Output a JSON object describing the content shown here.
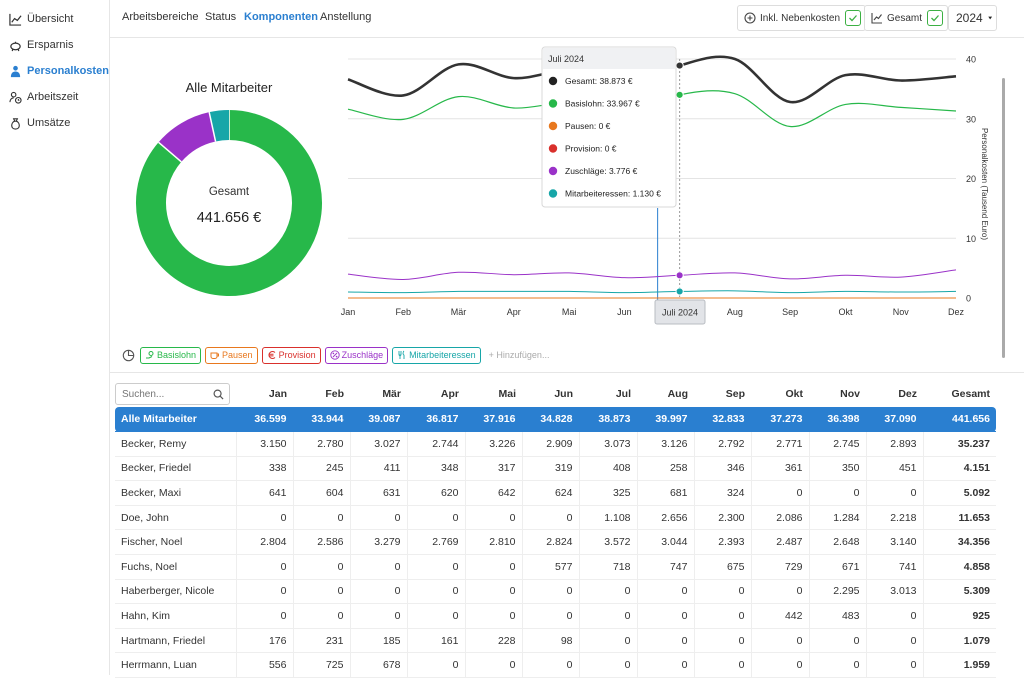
{
  "sidebar": {
    "items": [
      {
        "label": "Übersicht",
        "icon": "chart-line-icon",
        "active": false
      },
      {
        "label": "Ersparnis",
        "icon": "piggy-bank-icon",
        "active": false
      },
      {
        "label": "Personalkosten",
        "icon": "person-icon",
        "active": true
      },
      {
        "label": "Arbeitszeit",
        "icon": "clock-user-icon",
        "active": false
      },
      {
        "label": "Umsätze",
        "icon": "money-bag-icon",
        "active": false
      }
    ]
  },
  "header": {
    "tabs": [
      {
        "label": "Arbeitsbereiche",
        "active": false
      },
      {
        "label": "Status",
        "active": false
      },
      {
        "label": "Komponenten",
        "active": true
      },
      {
        "label": "Anstellung",
        "active": false
      }
    ],
    "toggle_nebenkosten": "Inkl. Nebenkosten",
    "toggle_gesamt": "Gesamt",
    "year": "2024"
  },
  "donut": {
    "title": "Alle Mitarbeiter",
    "center_label": "Gesamt",
    "center_value": "441.656 €",
    "segments": [
      {
        "name": "Basislohn",
        "value": 381.2,
        "color": "#27b84a"
      },
      {
        "name": "Zuschläge",
        "value": 45.3,
        "color": "#9a32c8"
      },
      {
        "name": "Mitarbeiteressen",
        "value": 15.1,
        "color": "#17a6a8"
      }
    ]
  },
  "chart_data": {
    "type": "line",
    "x": [
      "Jan",
      "Feb",
      "Mär",
      "Apr",
      "Mai",
      "Jun",
      "Jul",
      "Aug",
      "Sep",
      "Okt",
      "Nov",
      "Dez"
    ],
    "ylabel": "Personalkosten (Tausend Euro)",
    "ylim": [
      0,
      40
    ],
    "yticks": [
      "0",
      "10",
      "20",
      "30",
      "40"
    ],
    "grid": true,
    "highlight_label": "Juli 2024",
    "series": [
      {
        "name": "Gesamt",
        "color": "#333333",
        "values": [
          36.6,
          33.9,
          39.1,
          36.8,
          37.9,
          34.8,
          38.9,
          40.0,
          32.8,
          37.3,
          36.4,
          37.1
        ]
      },
      {
        "name": "Basislohn",
        "color": "#27b84a",
        "values": [
          31.6,
          29.9,
          33.7,
          31.8,
          32.6,
          30.5,
          34.0,
          34.2,
          28.7,
          32.4,
          31.9,
          31.3
        ]
      },
      {
        "name": "Pausen",
        "color": "#e8781e",
        "values": [
          0,
          0,
          0,
          0,
          0,
          0,
          0,
          0,
          0,
          0,
          0,
          0
        ]
      },
      {
        "name": "Provision",
        "color": "#d9302c",
        "values": [
          0,
          0,
          0,
          0,
          0,
          0,
          0,
          0,
          0,
          0,
          0,
          0
        ]
      },
      {
        "name": "Zuschläge",
        "color": "#9a32c8",
        "values": [
          4.0,
          3.1,
          4.3,
          3.9,
          4.2,
          3.4,
          3.8,
          4.2,
          3.2,
          3.8,
          3.5,
          4.7
        ]
      },
      {
        "name": "Mitarbeiteressen",
        "color": "#17a6a8",
        "values": [
          1.0,
          0.9,
          1.1,
          1.1,
          1.1,
          0.9,
          1.1,
          1.2,
          0.9,
          1.1,
          1.0,
          1.1
        ]
      }
    ]
  },
  "tooltip": {
    "title": "Juli 2024",
    "rows": [
      {
        "label": "Gesamt:",
        "value": "38.873 €",
        "color": "#222222"
      },
      {
        "label": "Basislohn:",
        "value": "33.967 €",
        "color": "#27b84a"
      },
      {
        "label": "Pausen:",
        "value": "0 €",
        "color": "#e8781e"
      },
      {
        "label": "Provision:",
        "value": "0 €",
        "color": "#d9302c"
      },
      {
        "label": "Zuschläge:",
        "value": "3.776 €",
        "color": "#9a32c8"
      },
      {
        "label": "Mitarbeiteressen:",
        "value": "1.130 €",
        "color": "#17a6a8"
      }
    ]
  },
  "legend_chips": [
    {
      "label": "Basislohn",
      "color": "#27b84a",
      "icon": "money-hand-icon"
    },
    {
      "label": "Pausen",
      "color": "#e8781e",
      "icon": "coffee-icon"
    },
    {
      "label": "Provision",
      "color": "#d9302c",
      "icon": "euro-icon"
    },
    {
      "label": "Zuschläge",
      "color": "#9a32c8",
      "icon": "percent-circle-icon"
    },
    {
      "label": "Mitarbeiteressen",
      "color": "#17a6a8",
      "icon": "cutlery-icon"
    }
  ],
  "add_label": "Hinzufügen...",
  "table": {
    "search_placeholder": "Suchen...",
    "columns": [
      "Jan",
      "Feb",
      "Mär",
      "Apr",
      "Mai",
      "Jun",
      "Jul",
      "Aug",
      "Sep",
      "Okt",
      "Nov",
      "Dez",
      "Gesamt"
    ],
    "rows": [
      {
        "name": "Alle Mitarbeiter",
        "values": [
          "36.599",
          "33.944",
          "39.087",
          "36.817",
          "37.916",
          "34.828",
          "38.873",
          "39.997",
          "32.833",
          "37.273",
          "36.398",
          "37.090",
          "441.656"
        ],
        "selected": true
      },
      {
        "name": "Becker, Remy",
        "values": [
          "3.150",
          "2.780",
          "3.027",
          "2.744",
          "3.226",
          "2.909",
          "3.073",
          "3.126",
          "2.792",
          "2.771",
          "2.745",
          "2.893",
          "35.237"
        ]
      },
      {
        "name": "Becker, Friedel",
        "values": [
          "338",
          "245",
          "411",
          "348",
          "317",
          "319",
          "408",
          "258",
          "346",
          "361",
          "350",
          "451",
          "4.151"
        ]
      },
      {
        "name": "Becker, Maxi",
        "values": [
          "641",
          "604",
          "631",
          "620",
          "642",
          "624",
          "325",
          "681",
          "324",
          "0",
          "0",
          "0",
          "5.092"
        ]
      },
      {
        "name": "Doe, John",
        "values": [
          "0",
          "0",
          "0",
          "0",
          "0",
          "0",
          "1.108",
          "2.656",
          "2.300",
          "2.086",
          "1.284",
          "2.218",
          "11.653"
        ]
      },
      {
        "name": "Fischer, Noel",
        "values": [
          "2.804",
          "2.586",
          "3.279",
          "2.769",
          "2.810",
          "2.824",
          "3.572",
          "3.044",
          "2.393",
          "2.487",
          "2.648",
          "3.140",
          "34.356"
        ]
      },
      {
        "name": "Fuchs, Noel",
        "values": [
          "0",
          "0",
          "0",
          "0",
          "0",
          "577",
          "718",
          "747",
          "675",
          "729",
          "671",
          "741",
          "4.858"
        ]
      },
      {
        "name": "Haberberger, Nicole",
        "values": [
          "0",
          "0",
          "0",
          "0",
          "0",
          "0",
          "0",
          "0",
          "0",
          "0",
          "2.295",
          "3.013",
          "5.309"
        ]
      },
      {
        "name": "Hahn, Kim",
        "values": [
          "0",
          "0",
          "0",
          "0",
          "0",
          "0",
          "0",
          "0",
          "0",
          "442",
          "483",
          "0",
          "925"
        ]
      },
      {
        "name": "Hartmann, Friedel",
        "values": [
          "176",
          "231",
          "185",
          "161",
          "228",
          "98",
          "0",
          "0",
          "0",
          "0",
          "0",
          "0",
          "1.079"
        ]
      },
      {
        "name": "Herrmann, Luan",
        "values": [
          "556",
          "725",
          "678",
          "0",
          "0",
          "0",
          "0",
          "0",
          "0",
          "0",
          "0",
          "0",
          "1.959"
        ]
      }
    ]
  }
}
